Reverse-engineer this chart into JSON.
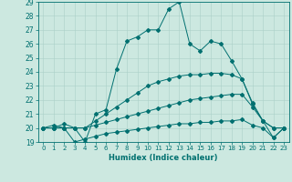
{
  "xlabel": "Humidex (Indice chaleur)",
  "xlim": [
    -0.5,
    23.5
  ],
  "ylim": [
    19,
    29
  ],
  "yticks": [
    19,
    20,
    21,
    22,
    23,
    24,
    25,
    26,
    27,
    28,
    29
  ],
  "xticks": [
    0,
    1,
    2,
    3,
    4,
    5,
    6,
    7,
    8,
    9,
    10,
    11,
    12,
    13,
    14,
    15,
    16,
    17,
    18,
    19,
    20,
    21,
    22,
    23
  ],
  "bg_color": "#cce8e0",
  "line_color": "#007070",
  "grid_color": "#aad0c8",
  "lines": [
    [
      20.0,
      20.2,
      20.0,
      19.0,
      19.2,
      19.4,
      19.6,
      19.7,
      19.8,
      19.9,
      20.0,
      20.1,
      20.2,
      20.3,
      20.3,
      20.4,
      20.4,
      20.5,
      20.5,
      20.6,
      20.2,
      20.0,
      19.3,
      20.0
    ],
    [
      20.0,
      20.0,
      20.0,
      20.0,
      20.0,
      20.2,
      20.4,
      20.6,
      20.8,
      21.0,
      21.2,
      21.4,
      21.6,
      21.8,
      22.0,
      22.1,
      22.2,
      22.3,
      22.4,
      22.4,
      21.5,
      20.5,
      20.0,
      20.0
    ],
    [
      20.0,
      20.0,
      20.0,
      20.0,
      20.0,
      20.5,
      21.0,
      21.5,
      22.0,
      22.5,
      23.0,
      23.3,
      23.5,
      23.7,
      23.8,
      23.8,
      23.9,
      23.9,
      23.8,
      23.5,
      21.8,
      20.5,
      20.0,
      20.0
    ],
    [
      20.0,
      20.0,
      20.3,
      20.0,
      19.0,
      21.0,
      21.3,
      24.2,
      26.2,
      26.5,
      27.0,
      27.0,
      28.5,
      29.0,
      26.0,
      25.5,
      26.2,
      26.0,
      24.8,
      23.5,
      21.7,
      20.5,
      19.3,
      20.0
    ]
  ]
}
